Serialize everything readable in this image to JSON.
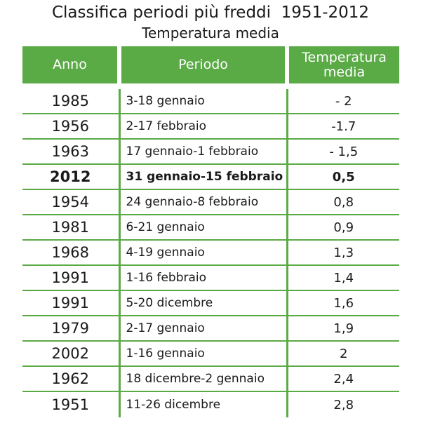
{
  "title": "Classifica periodi più freddi  1951-2012",
  "subtitle": "Temperatura media",
  "headers": {
    "anno": "Anno",
    "periodo": "Periodo",
    "temperatura": "Temperatura media"
  },
  "colors": {
    "header_bg": "#5aaa46",
    "rule": "#5aaa46"
  },
  "rows": [
    {
      "anno": "1985",
      "periodo": "3-18 gennaio",
      "temp": "- 2"
    },
    {
      "anno": "1956",
      "periodo": "2-17 febbraio",
      "temp": "-1.7"
    },
    {
      "anno": "1963",
      "periodo": "17 gennaio-1 febbraio",
      "temp": "- 1,5"
    },
    {
      "anno": "2012",
      "periodo": "31 gennaio-15 febbraio",
      "temp": "0,5",
      "highlight": true
    },
    {
      "anno": "1954",
      "periodo": "24 gennaio-8 febbraio",
      "temp": "0,8"
    },
    {
      "anno": "1981",
      "periodo": "6-21 gennaio",
      "temp": "0,9"
    },
    {
      "anno": "1968",
      "periodo": "4-19 gennaio",
      "temp": "1,3"
    },
    {
      "anno": "1991",
      "periodo": "1-16 febbraio",
      "temp": "1,4"
    },
    {
      "anno": "1991",
      "periodo": "5-20 dicembre",
      "temp": "1,6"
    },
    {
      "anno": "1979",
      "periodo": "2-17 gennaio",
      "temp": "1,9"
    },
    {
      "anno": "2002",
      "periodo": "1-16 gennaio",
      "temp": "2"
    },
    {
      "anno": "1962",
      "periodo": "18 dicembre-2 gennaio",
      "temp": "2,4"
    },
    {
      "anno": "1951",
      "periodo": "11-26 dicembre",
      "temp": "2,8"
    }
  ]
}
